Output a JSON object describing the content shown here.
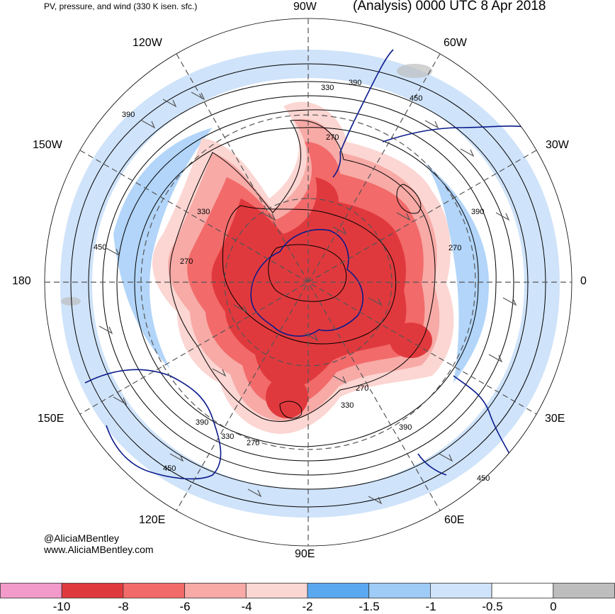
{
  "header": {
    "left_title": "PV, pressure, and wind (330 K isen. sfc.)",
    "right_title": "(Analysis) 0000 UTC 8 Apr 2018"
  },
  "longitudes": {
    "lon_90w": "90W",
    "lon_60w": "60W",
    "lon_30w": "30W",
    "lon_0": "0",
    "lon_30e": "30E",
    "lon_60e": "60E",
    "lon_90e": "90E",
    "lon_120e": "120E",
    "lon_150e": "150E",
    "lon_180": "180",
    "lon_150w": "150W",
    "lon_120w": "120W"
  },
  "contour_labels": {
    "c1": "390",
    "c2": "330",
    "c3": "450",
    "c4": "270",
    "c5": "390",
    "c6": "330",
    "c7": "450",
    "c8": "270",
    "c9": "390",
    "c10": "270",
    "c11": "390",
    "c12": "330",
    "c13": "270",
    "c14": "330",
    "c15": "450",
    "c16": "390",
    "c17": "450",
    "c18": "270"
  },
  "credit": {
    "handle": "@AliciaMBentley",
    "website": "www.AliciaMBentley.com"
  },
  "colorbar": {
    "swatches": [
      "#f29ac9",
      "#e0393d",
      "#f26a6a",
      "#f7aaa6",
      "#fbd6d2",
      "#5aa8f0",
      "#9fcbf7",
      "#cfe3fa",
      "#ffffff",
      "#bdbdbd"
    ],
    "labels": {
      "t0": "-10",
      "t1": "-8",
      "t2": "-6",
      "t3": "-4",
      "t4": "-2",
      "t5": "-1.5",
      "t6": "-1",
      "t7": "-0.5",
      "t8": "0"
    }
  },
  "colors": {
    "coastline": "#0a1a8c",
    "contour": "#000000",
    "grid": "#555555",
    "pv_strong": "#e0393d",
    "pv_weak_blue": "#9fcbf7"
  }
}
